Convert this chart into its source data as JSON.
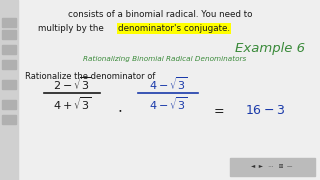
{
  "bg_color": "#efefef",
  "top_text_line1": "consists of a binomial radical. You need to",
  "top_text_line2_normal": "multiply by the ",
  "top_text_highlight": "denominator's conjugate.",
  "example_label": "Example 6",
  "subtitle": "Rationalizing Binomial Radical Denominators",
  "problem_text": "Rationalize the denominator of",
  "highlight_color": "#ffff00",
  "example_color": "#3a8a3a",
  "subtitle_color": "#3a8a3a",
  "body_color": "#1a1a1a",
  "frac2_color": "#1a3aaa",
  "result_color": "#1a3aaa",
  "left_bar_color": "#888888",
  "nav_bg": "#bbbbbb",
  "frac1_num": "2-\\sqrt{3}",
  "frac1_den": "4+\\sqrt{3}",
  "frac2_num": "4-\\sqrt{3}",
  "frac2_den": "4-\\sqrt{3}"
}
